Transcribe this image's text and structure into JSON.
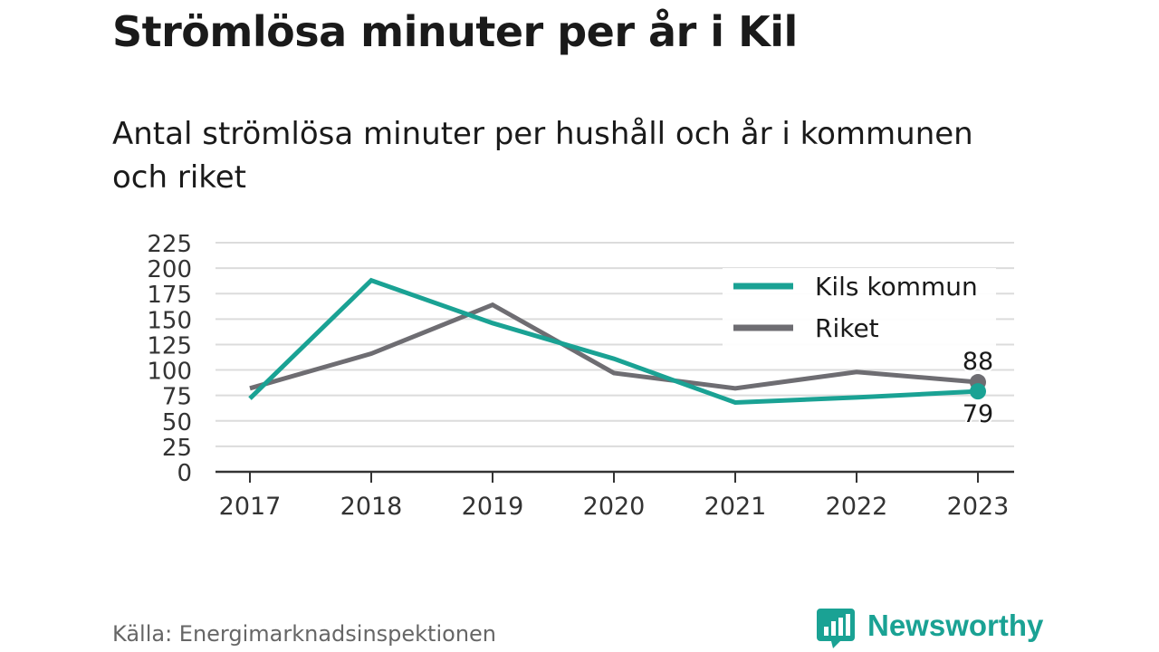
{
  "title": "Strömlösa minuter per år i Kil",
  "subtitle": "Antal strömlösa minuter per hushåll och år i kommunen och riket",
  "source": "Källa: Energimarknadsinspektionen",
  "brand": {
    "name": "Newsworthy",
    "icon": "newsworthy-logo-icon",
    "color": "#1aa294"
  },
  "colors": {
    "grid": "#dcdcdc",
    "axis": "#333333"
  },
  "chart_data": {
    "type": "line",
    "categories": [
      "2017",
      "2018",
      "2019",
      "2020",
      "2021",
      "2022",
      "2023"
    ],
    "ylim": [
      0,
      225
    ],
    "yticks": [
      0,
      25,
      50,
      75,
      100,
      125,
      150,
      175,
      200,
      225
    ],
    "grid": true,
    "legend_position": "top-right",
    "series": [
      {
        "name": "Kils kommun",
        "color": "#1aa294",
        "values": [
          72,
          188,
          146,
          111,
          68,
          73,
          79
        ],
        "end_label": "79"
      },
      {
        "name": "Riket",
        "color": "#6e6d72",
        "values": [
          82,
          116,
          164,
          97,
          82,
          98,
          88
        ],
        "end_label": "88"
      }
    ]
  }
}
